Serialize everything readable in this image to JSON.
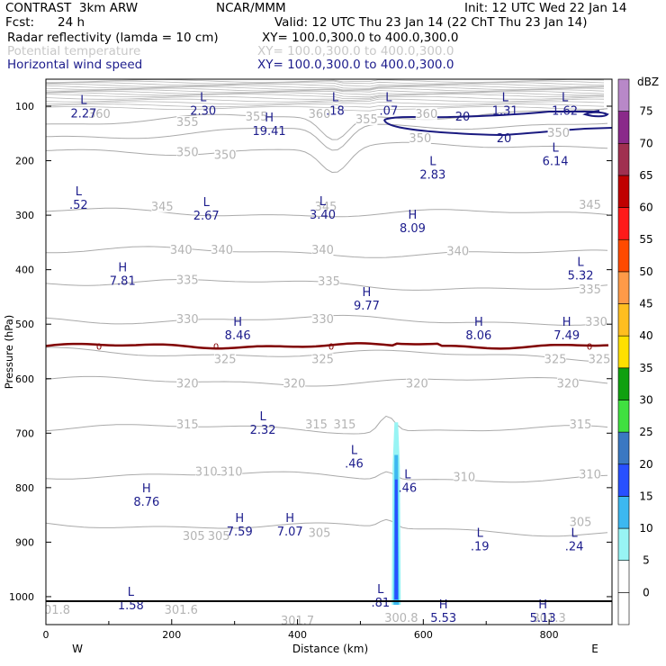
{
  "header": {
    "model": "CONTRAST  3km ARW",
    "center": "NCAR/MMM",
    "init": "Init: 12 UTC Wed 22 Jan 14",
    "fcst_label": "Fcst:",
    "fcst_value": "24 h",
    "valid": "Valid: 12 UTC Thu 23 Jan 14 (22 ChT Thu 23 Jan 14)",
    "fields": [
      {
        "name": "Radar reflectivity (lamda = 10 cm)",
        "xy": "XY= 100.0,300.0 to 400.0,300.0"
      },
      {
        "name": "Potential temperature",
        "xy": "XY= 100.0,300.0 to 400.0,300.0"
      },
      {
        "name": "Horizontal wind speed",
        "xy": "XY= 100.0,300.0 to 400.0,300.0"
      }
    ]
  },
  "chart_data": {
    "type": "cross-section",
    "xlabel": "Distance (km)",
    "ylabel": "Pressure (hPa)",
    "xlim": [
      0,
      900
    ],
    "ylim": [
      1050,
      50
    ],
    "x_ticks": [
      0,
      200,
      400,
      600,
      800
    ],
    "y_ticks": [
      100,
      200,
      300,
      400,
      500,
      600,
      700,
      800,
      900,
      1000
    ],
    "direction_left": "W",
    "direction_right": "E",
    "theta_contours": [
      {
        "value": 305,
        "p_left": 865,
        "p_right": 882
      },
      {
        "value": 310,
        "p_left": 775,
        "p_right": 785
      },
      {
        "value": 315,
        "p_left": 690,
        "p_right": 695
      },
      {
        "value": 320,
        "p_left": 605,
        "p_right": 605
      },
      {
        "value": 325,
        "p_left": 550,
        "p_right": 560
      },
      {
        "value": 330,
        "p_left": 490,
        "p_right": 495
      },
      {
        "value": 335,
        "p_left": 420,
        "p_right": 435
      },
      {
        "value": 340,
        "p_left": 365,
        "p_right": 372
      },
      {
        "value": 345,
        "p_left": 295,
        "p_right": 298
      },
      {
        "value": 350,
        "p_left": 185,
        "p_right": 170
      },
      {
        "value": 355,
        "p_left": 155,
        "p_right": 128
      },
      {
        "value": 360,
        "p_left": 130,
        "p_right": 108
      }
    ],
    "theta_labels": [
      {
        "text": "305",
        "x": 235,
        "p": 888
      },
      {
        "text": "305",
        "x": 275,
        "p": 888
      },
      {
        "text": "305",
        "x": 435,
        "p": 882
      },
      {
        "text": "305",
        "x": 850,
        "p": 862
      },
      {
        "text": "310",
        "x": 255,
        "p": 770
      },
      {
        "text": "310",
        "x": 295,
        "p": 770
      },
      {
        "text": "310",
        "x": 665,
        "p": 780
      },
      {
        "text": "310",
        "x": 865,
        "p": 775
      },
      {
        "text": "315",
        "x": 225,
        "p": 683
      },
      {
        "text": "315",
        "x": 430,
        "p": 683
      },
      {
        "text": "315",
        "x": 475,
        "p": 683
      },
      {
        "text": "315",
        "x": 850,
        "p": 683
      },
      {
        "text": "320",
        "x": 225,
        "p": 608
      },
      {
        "text": "320",
        "x": 395,
        "p": 608
      },
      {
        "text": "320",
        "x": 590,
        "p": 608
      },
      {
        "text": "320",
        "x": 830,
        "p": 608
      },
      {
        "text": "325",
        "x": 285,
        "p": 563
      },
      {
        "text": "325",
        "x": 440,
        "p": 563
      },
      {
        "text": "325",
        "x": 810,
        "p": 563
      },
      {
        "text": "325",
        "x": 880,
        "p": 563
      },
      {
        "text": "330",
        "x": 225,
        "p": 490
      },
      {
        "text": "330",
        "x": 440,
        "p": 490
      },
      {
        "text": "330",
        "x": 875,
        "p": 495
      },
      {
        "text": "335",
        "x": 225,
        "p": 418
      },
      {
        "text": "335",
        "x": 450,
        "p": 420
      },
      {
        "text": "335",
        "x": 865,
        "p": 435
      },
      {
        "text": "340",
        "x": 215,
        "p": 363
      },
      {
        "text": "340",
        "x": 280,
        "p": 363
      },
      {
        "text": "340",
        "x": 440,
        "p": 363
      },
      {
        "text": "340",
        "x": 655,
        "p": 365
      },
      {
        "text": "345",
        "x": 185,
        "p": 283
      },
      {
        "text": "345",
        "x": 445,
        "p": 283
      },
      {
        "text": "345",
        "x": 865,
        "p": 280
      },
      {
        "text": "350",
        "x": 225,
        "p": 183
      },
      {
        "text": "350",
        "x": 285,
        "p": 188
      },
      {
        "text": "350",
        "x": 595,
        "p": 158
      },
      {
        "text": "350",
        "x": 815,
        "p": 148
      },
      {
        "text": "355",
        "x": 225,
        "p": 128
      },
      {
        "text": "355",
        "x": 335,
        "p": 118
      },
      {
        "text": "355",
        "x": 510,
        "p": 123
      },
      {
        "text": "360",
        "x": 85,
        "p": 113
      },
      {
        "text": "360",
        "x": 435,
        "p": 113
      },
      {
        "text": "360",
        "x": 605,
        "p": 113
      },
      {
        "text": "301.8",
        "x": 12,
        "p": 1023
      },
      {
        "text": "301.6",
        "x": 215,
        "p": 1023
      },
      {
        "text": "301.7",
        "x": 400,
        "p": 1043
      },
      {
        "text": "300.8",
        "x": 565,
        "p": 1038
      },
      {
        "text": "301.3",
        "x": 800,
        "p": 1038
      }
    ],
    "wind_contour_20": {
      "value": "20",
      "labels": [
        {
          "text": "20",
          "x": 665,
          "p": 118
        },
        {
          "text": "20",
          "x": 727,
          "p": 160
        }
      ]
    },
    "freezing_level": {
      "value": "0",
      "p": 540
    },
    "reflectivity_column": {
      "x": 557,
      "p_top": 680,
      "p_bottom": 1015,
      "core_dbz": 20
    },
    "extrema": [
      {
        "type": "L",
        "value": "2.27",
        "x": 60,
        "p": 88
      },
      {
        "type": "L",
        "value": "2.30",
        "x": 250,
        "p": 83
      },
      {
        "type": "L",
        "value": ".18",
        "x": 460,
        "p": 83
      },
      {
        "type": "L",
        "value": ".07",
        "x": 545,
        "p": 83
      },
      {
        "type": "L",
        "value": "1.31",
        "x": 730,
        "p": 83
      },
      {
        "type": "L",
        "value": "1.62",
        "x": 825,
        "p": 83
      },
      {
        "type": "H",
        "value": "19.41",
        "x": 355,
        "p": 120
      },
      {
        "type": "L",
        "value": "6.14",
        "x": 810,
        "p": 175
      },
      {
        "type": "L",
        "value": ".52",
        "x": 52,
        "p": 255
      },
      {
        "type": "L",
        "value": "2.67",
        "x": 255,
        "p": 275
      },
      {
        "type": "L",
        "value": "3.40",
        "x": 440,
        "p": 273
      },
      {
        "type": "L",
        "value": "2.83",
        "x": 615,
        "p": 200
      },
      {
        "type": "H",
        "value": "8.09",
        "x": 583,
        "p": 298
      },
      {
        "type": "H",
        "value": "7.81",
        "x": 122,
        "p": 395
      },
      {
        "type": "H",
        "value": "9.77",
        "x": 510,
        "p": 440
      },
      {
        "type": "L",
        "value": "5.32",
        "x": 850,
        "p": 385
      },
      {
        "type": "H",
        "value": "8.46",
        "x": 305,
        "p": 495
      },
      {
        "type": "H",
        "value": "8.06",
        "x": 688,
        "p": 495
      },
      {
        "type": "H",
        "value": "7.49",
        "x": 828,
        "p": 495
      },
      {
        "type": "L",
        "value": "2.32",
        "x": 345,
        "p": 668
      },
      {
        "type": "L",
        "value": ".46",
        "x": 490,
        "p": 730
      },
      {
        "type": "L",
        "value": ".46",
        "x": 575,
        "p": 775
      },
      {
        "type": "H",
        "value": "8.76",
        "x": 160,
        "p": 800
      },
      {
        "type": "H",
        "value": "7.59",
        "x": 308,
        "p": 855
      },
      {
        "type": "H",
        "value": "7.07",
        "x": 388,
        "p": 855
      },
      {
        "type": "L",
        "value": ".19",
        "x": 690,
        "p": 882
      },
      {
        "type": "L",
        "value": ".24",
        "x": 840,
        "p": 882
      },
      {
        "type": "L",
        "value": ".81",
        "x": 532,
        "p": 985
      },
      {
        "type": "L",
        "value": "1.58",
        "x": 135,
        "p": 990
      },
      {
        "type": "H",
        "value": "5.53",
        "x": 632,
        "p": 1013
      },
      {
        "type": "H",
        "value": "5.13",
        "x": 790,
        "p": 1013
      }
    ],
    "colorbar": {
      "title": "dBZ",
      "levels": [
        "0",
        "5",
        "10",
        "15",
        "20",
        "25",
        "30",
        "35",
        "40",
        "45",
        "50",
        "55",
        "60",
        "65",
        "70",
        "75"
      ],
      "colors": [
        "#ffffff",
        "#98f4f4",
        "#3cb8f0",
        "#2850ff",
        "#3a78c2",
        "#40e040",
        "#10a010",
        "#ffe000",
        "#ffbe20",
        "#ff9a48",
        "#ff4a00",
        "#ff1a1a",
        "#c00000",
        "#a03050",
        "#8a2a8a",
        "#b888c8"
      ]
    }
  }
}
